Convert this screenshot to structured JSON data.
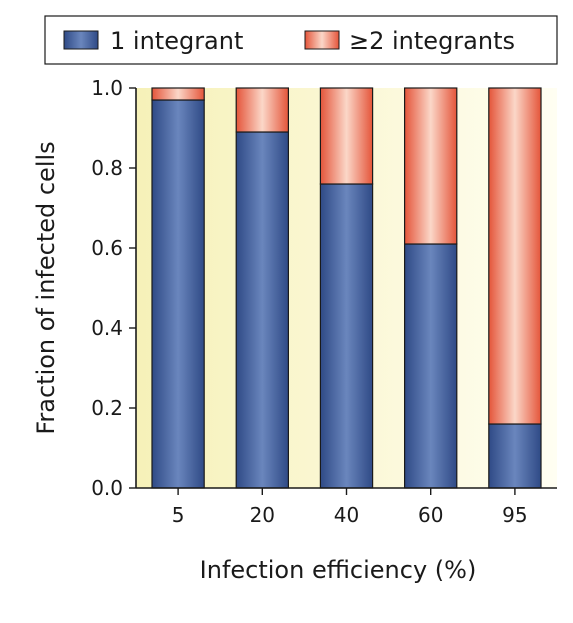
{
  "chart_data": {
    "type": "bar",
    "stacked": true,
    "categories": [
      "5",
      "20",
      "40",
      "60",
      "95"
    ],
    "series": [
      {
        "name": "1 integrant",
        "values": [
          0.97,
          0.89,
          0.76,
          0.61,
          0.16
        ],
        "color": "#3a5796"
      },
      {
        "name": "≥2 integrants",
        "values": [
          0.03,
          0.11,
          0.24,
          0.39,
          0.84
        ],
        "color": "#e86a4e"
      }
    ],
    "xlabel": "Infection efficiency (%)",
    "ylabel": "Fraction of infected cells",
    "ylim": [
      0,
      1.0
    ],
    "yticks": [
      "0.0",
      "0.2",
      "0.4",
      "0.6",
      "0.8",
      "1.0"
    ],
    "ytick_values": [
      0,
      0.2,
      0.4,
      0.6,
      0.8,
      1.0
    ],
    "grid": false,
    "legend_position": "top",
    "background_gradient": [
      "#f6f1b8",
      "#fffef2"
    ]
  }
}
